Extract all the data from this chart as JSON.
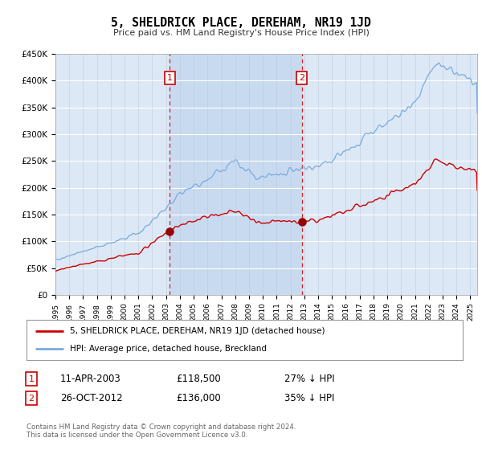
{
  "title": "5, SHELDRICK PLACE, DEREHAM, NR19 1JD",
  "subtitle": "Price paid vs. HM Land Registry's House Price Index (HPI)",
  "background_color": "#ffffff",
  "plot_bg_color": "#dce8f5",
  "highlight_bg_color": "#c8daf0",
  "ylim": [
    0,
    450000
  ],
  "yticks": [
    0,
    50000,
    100000,
    150000,
    200000,
    250000,
    300000,
    350000,
    400000,
    450000
  ],
  "ytick_labels": [
    "£0",
    "£50K",
    "£100K",
    "£150K",
    "£200K",
    "£250K",
    "£300K",
    "£350K",
    "£400K",
    "£450K"
  ],
  "year_start": 1995,
  "year_end": 2025,
  "transaction1_year": 2003.27,
  "transaction1_price": 118500,
  "transaction2_year": 2012.81,
  "transaction2_price": 136000,
  "legend_house": "5, SHELDRICK PLACE, DEREHAM, NR19 1JD (detached house)",
  "legend_hpi": "HPI: Average price, detached house, Breckland",
  "ann1_label": "1",
  "ann1_date": "11-APR-2003",
  "ann1_price": "£118,500",
  "ann1_hpi": "27% ↓ HPI",
  "ann2_label": "2",
  "ann2_date": "26-OCT-2012",
  "ann2_price": "£136,000",
  "ann2_hpi": "35% ↓ HPI",
  "footer": "Contains HM Land Registry data © Crown copyright and database right 2024.\nThis data is licensed under the Open Government Licence v3.0.",
  "line_house_color": "#cc0000",
  "line_hpi_color": "#7aaadd",
  "dashed_line_color": "#cc0000",
  "marker_color": "#990000",
  "box_color": "#cc0000"
}
